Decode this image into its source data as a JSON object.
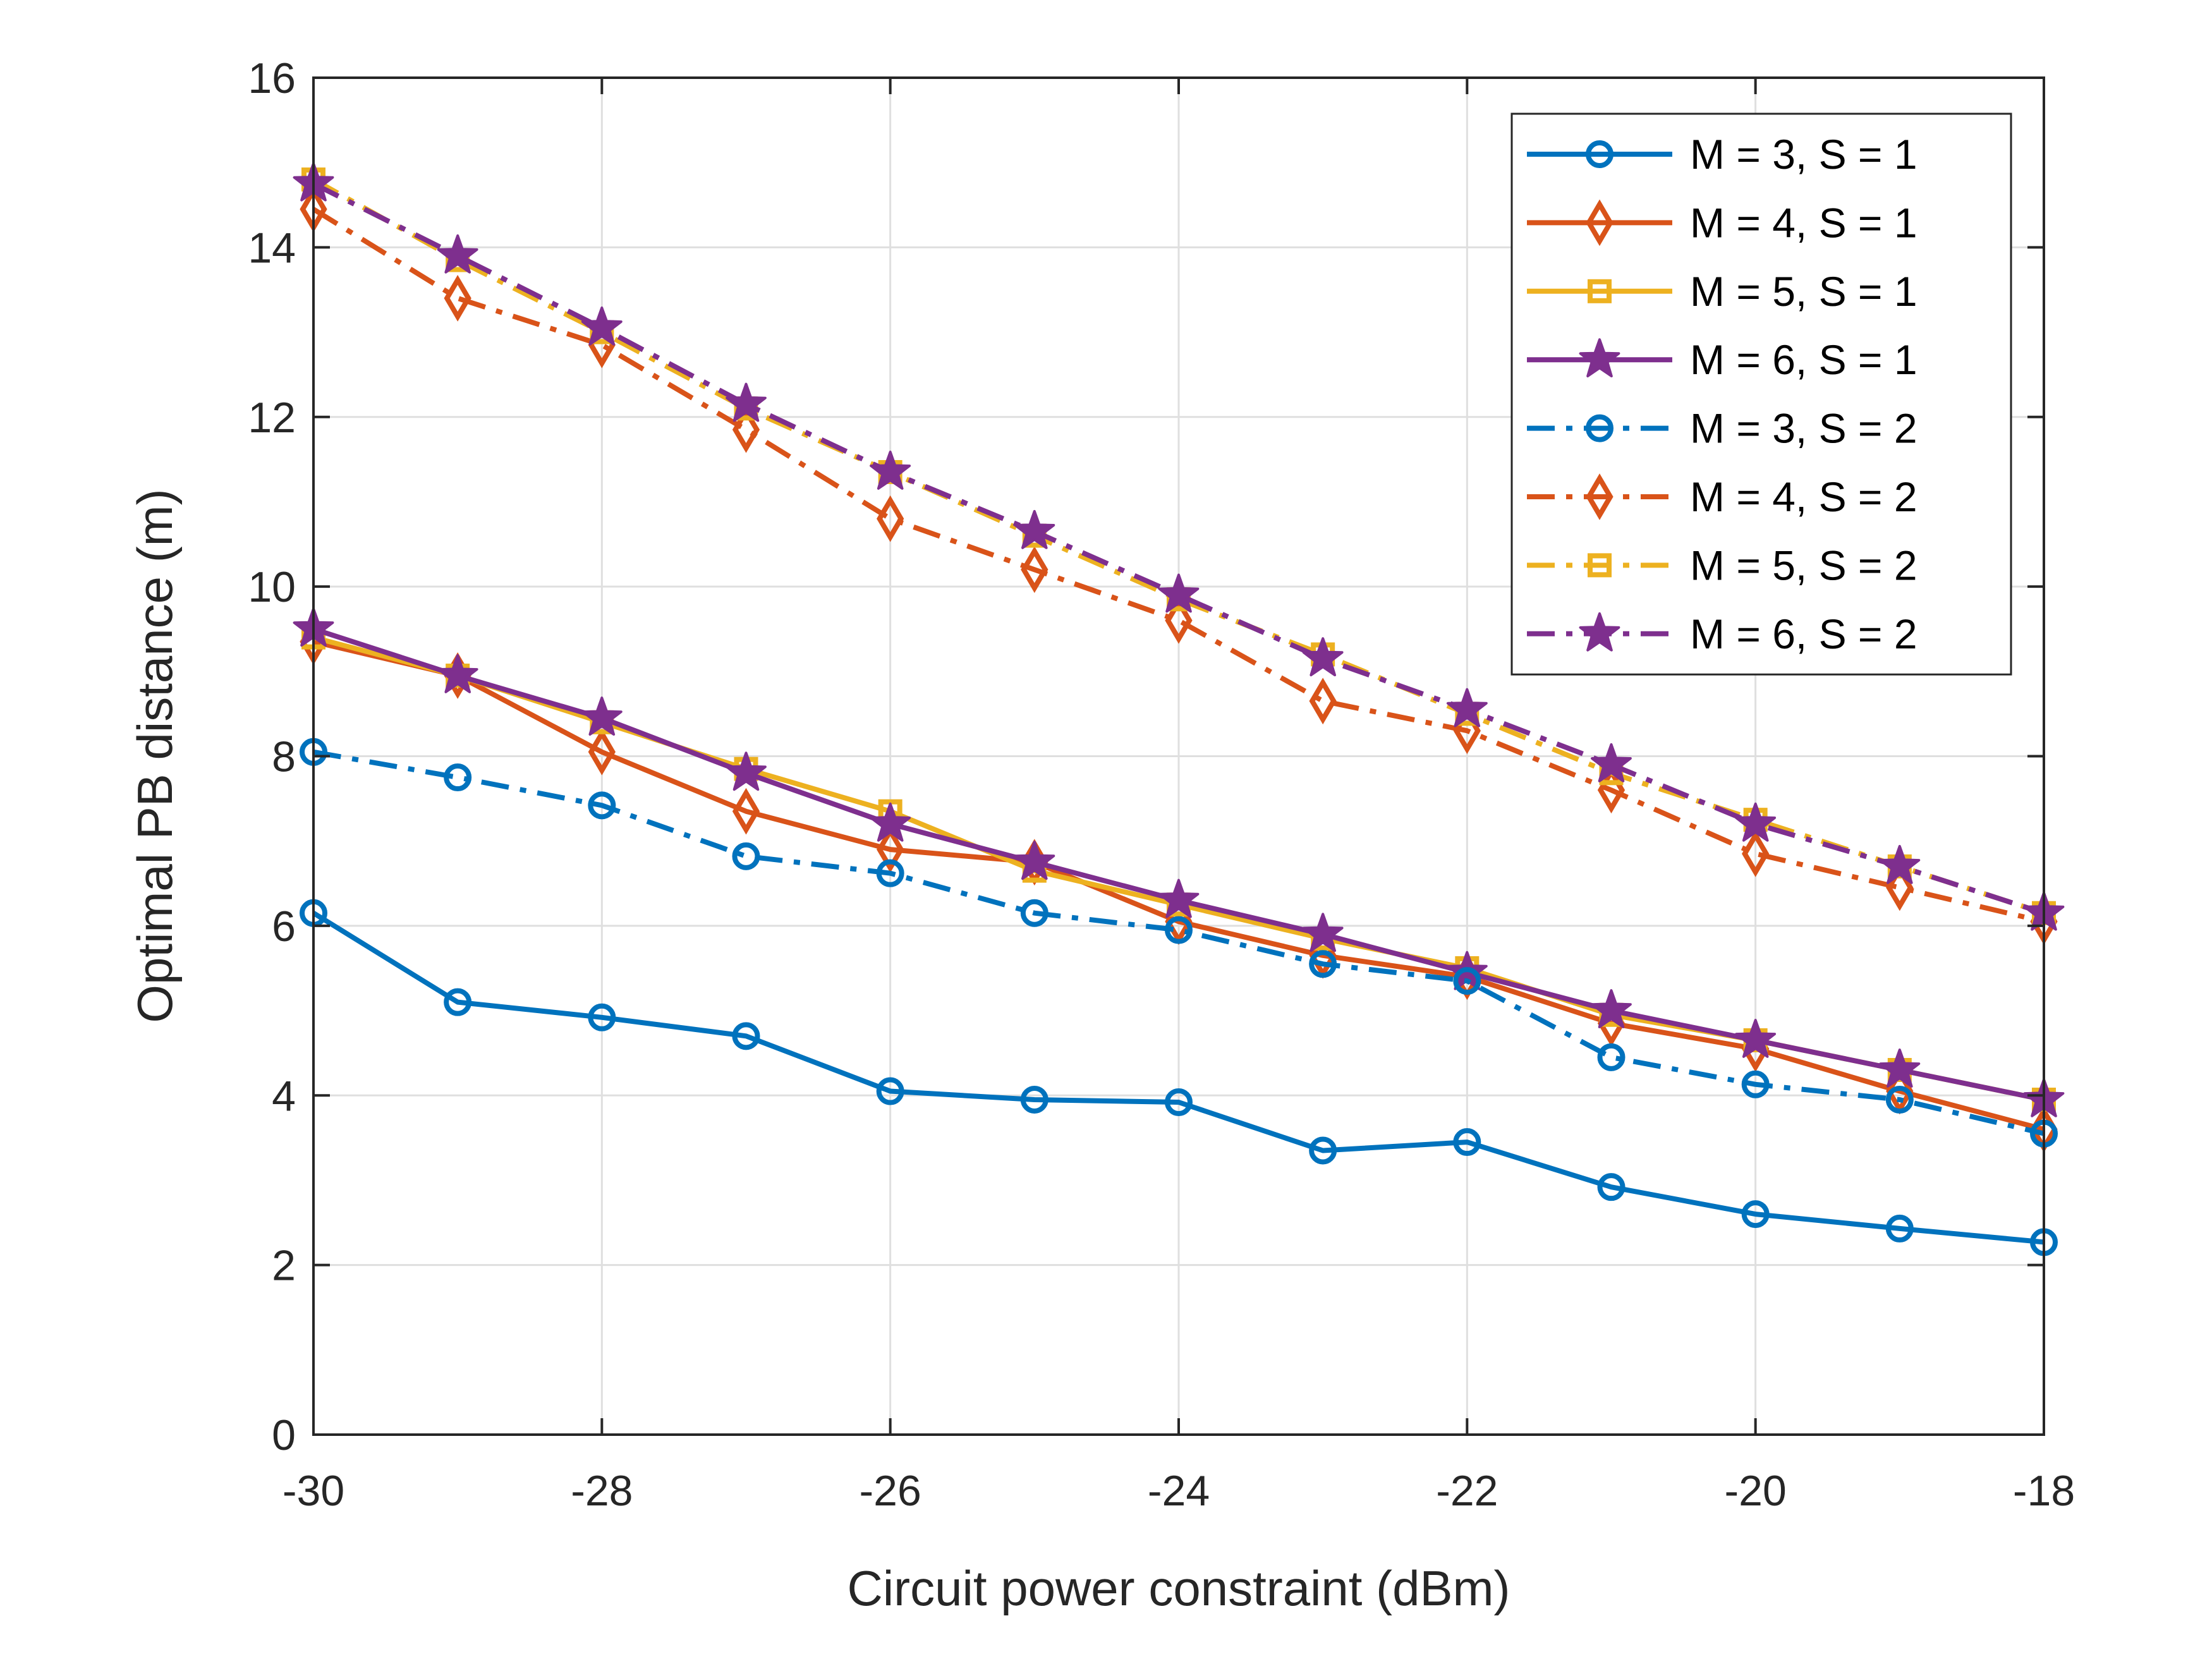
{
  "chart_data": {
    "type": "line",
    "title": "",
    "xlabel": "Circuit power constraint (dBm)",
    "ylabel": "Optimal PB distance (m)",
    "xlim": [
      -30,
      -18
    ],
    "ylim": [
      0,
      16
    ],
    "xticks": [
      -30,
      -28,
      -26,
      -24,
      -22,
      -20,
      -18
    ],
    "yticks": [
      0,
      2,
      4,
      6,
      8,
      10,
      12,
      14,
      16
    ],
    "grid": true,
    "legend_position": "top-right",
    "x": [
      -30,
      -29,
      -28,
      -27,
      -26,
      -25,
      -24,
      -23,
      -22,
      -21,
      -20,
      -19,
      -18
    ],
    "series": [
      {
        "name": "M = 3, S = 1",
        "color": "#0072BD",
        "marker": "circle",
        "dash": "solid",
        "values": [
          6.15,
          5.1,
          4.92,
          4.7,
          4.05,
          3.95,
          3.92,
          3.35,
          3.45,
          2.92,
          2.6,
          2.43,
          2.27
        ]
      },
      {
        "name": "M = 4, S = 1",
        "color": "#D95319",
        "marker": "diamond",
        "dash": "solid",
        "values": [
          9.35,
          8.95,
          8.05,
          7.35,
          6.9,
          6.75,
          6.05,
          5.65,
          5.4,
          4.85,
          4.55,
          4.05,
          3.6
        ]
      },
      {
        "name": "M = 5, S = 1",
        "color": "#EDB120",
        "marker": "square",
        "dash": "solid",
        "values": [
          9.4,
          8.95,
          8.4,
          7.85,
          7.35,
          6.65,
          6.25,
          5.85,
          5.5,
          4.95,
          4.65,
          4.3,
          3.95
        ]
      },
      {
        "name": "M = 6, S = 1",
        "color": "#7E2F8E",
        "marker": "star",
        "dash": "solid",
        "values": [
          9.5,
          8.95,
          8.45,
          7.8,
          7.2,
          6.75,
          6.3,
          5.9,
          5.45,
          5.0,
          4.65,
          4.3,
          3.95
        ]
      },
      {
        "name": "M = 3, S = 2",
        "color": "#0072BD",
        "marker": "circle",
        "dash": "dashdot",
        "values": [
          8.05,
          7.75,
          7.42,
          6.82,
          6.62,
          6.15,
          5.95,
          5.55,
          5.35,
          4.45,
          4.13,
          3.95,
          3.55
        ]
      },
      {
        "name": "M = 4, S = 2",
        "color": "#D95319",
        "marker": "diamond",
        "dash": "dashdot",
        "values": [
          14.45,
          13.4,
          12.85,
          11.85,
          10.8,
          10.2,
          9.6,
          8.65,
          8.3,
          7.6,
          6.85,
          6.45,
          6.05
        ]
      },
      {
        "name": "M = 5, S = 2",
        "color": "#EDB120",
        "marker": "square",
        "dash": "dashdot",
        "values": [
          14.8,
          13.85,
          13.0,
          12.1,
          11.35,
          10.6,
          9.85,
          9.2,
          8.5,
          7.8,
          7.25,
          6.7,
          6.15
        ]
      },
      {
        "name": "M = 6, S = 2",
        "color": "#7E2F8E",
        "marker": "star",
        "dash": "dashdot",
        "values": [
          14.75,
          13.9,
          13.05,
          12.15,
          11.35,
          10.65,
          9.9,
          9.15,
          8.55,
          7.9,
          7.2,
          6.7,
          6.15
        ]
      }
    ]
  }
}
